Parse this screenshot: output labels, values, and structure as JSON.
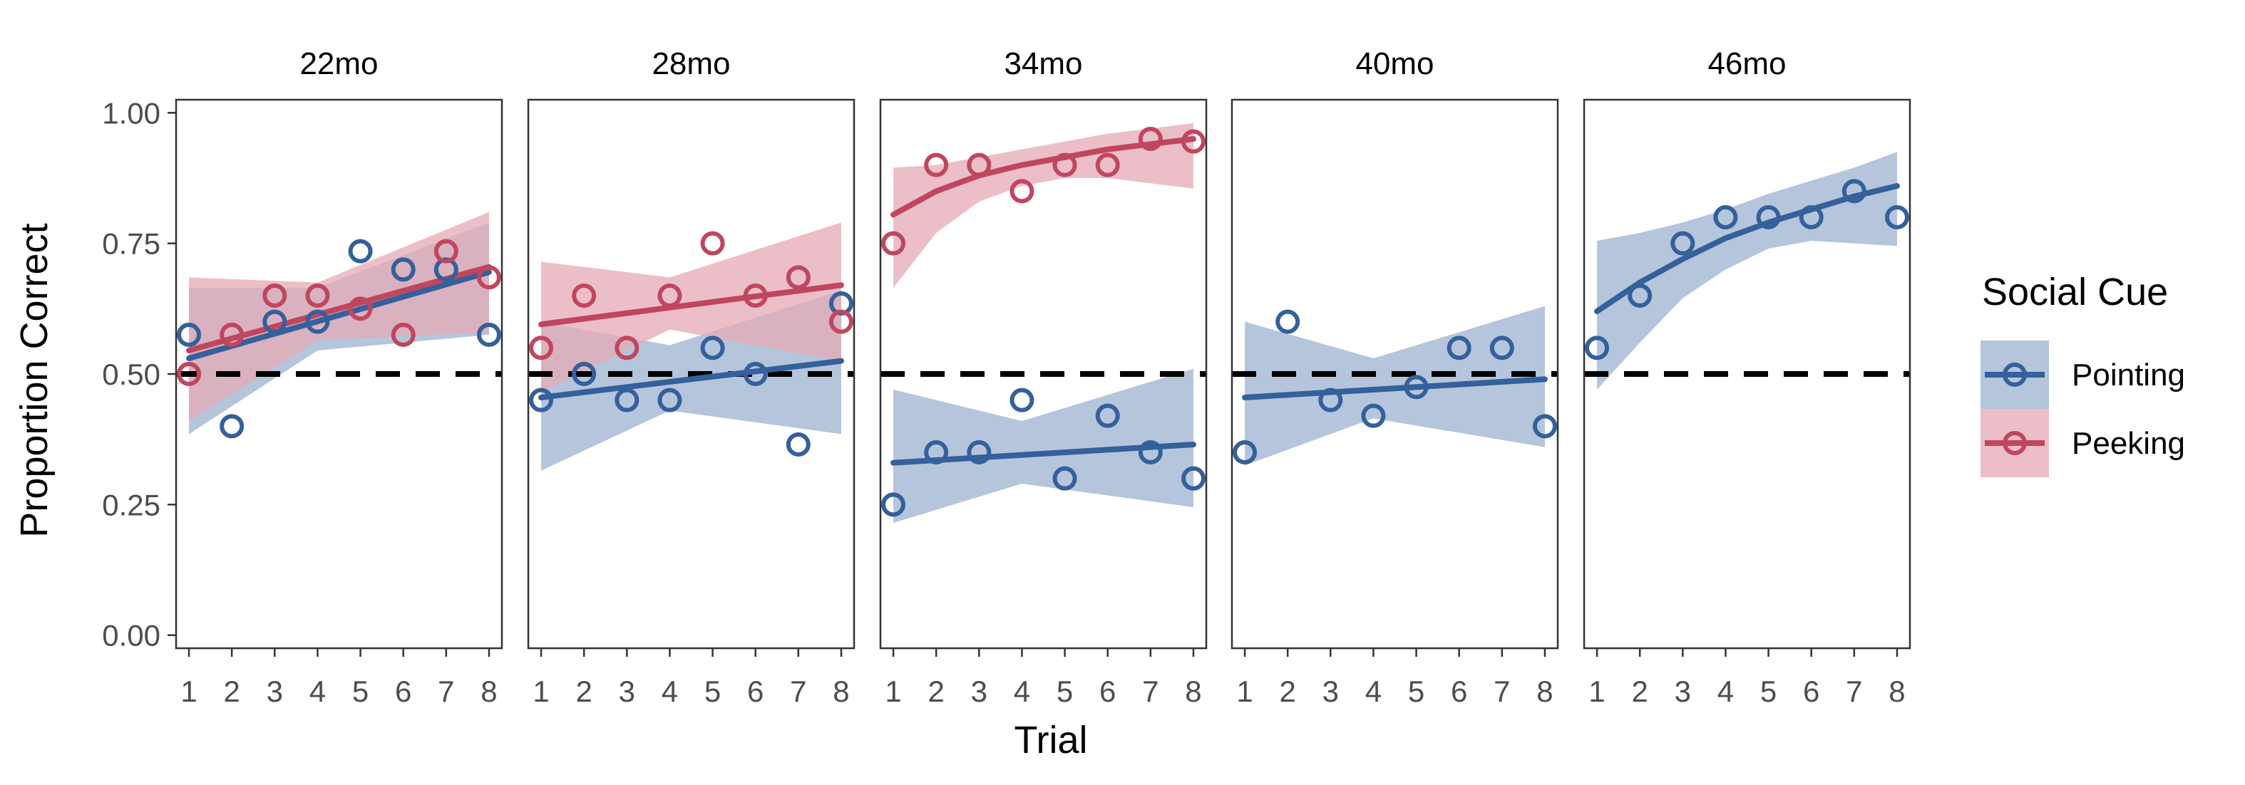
{
  "colors": {
    "pointing": "#34609b",
    "peeking": "#c0465e",
    "pointing_band": "#a8bbd6",
    "peeking_band": "#e6aab5",
    "reference_line": "#000000",
    "panel_border": "#333333",
    "text": "#4d4d4d",
    "title_text": "#000000"
  },
  "chart_data": {
    "type": "scatter",
    "layout": "facet",
    "ylabel": "Proportion Correct",
    "xlabel": "Trial",
    "x_ticks": [
      1,
      2,
      3,
      4,
      5,
      6,
      7,
      8
    ],
    "y_ticks": [
      "0.00",
      "0.25",
      "0.50",
      "0.75",
      "1.00"
    ],
    "ylim": [
      -0.025,
      1.025
    ],
    "xlim": [
      0.7,
      8.3
    ],
    "chance_level": 0.5,
    "legend": {
      "title": "Social Cue",
      "position": "right",
      "items": [
        {
          "key": "pointing",
          "label": "Pointing"
        },
        {
          "key": "peeking",
          "label": "Peeking"
        }
      ]
    },
    "facets": [
      {
        "label": "22mo",
        "series": [
          {
            "key": "pointing",
            "points": [
              [
                1,
                0.575
              ],
              [
                2,
                0.4
              ],
              [
                3,
                0.6
              ],
              [
                4,
                0.6
              ],
              [
                5,
                0.735
              ],
              [
                6,
                0.7
              ],
              [
                7,
                0.7
              ],
              [
                8,
                0.575
              ]
            ],
            "fit": [
              [
                1,
                0.53
              ],
              [
                8,
                0.695
              ]
            ],
            "ci": [
              [
                1,
                0.385,
                0.665
              ],
              [
                4,
                0.545,
                0.665
              ],
              [
                8,
                0.575,
                0.79
              ]
            ]
          },
          {
            "key": "peeking",
            "points": [
              [
                1,
                0.5
              ],
              [
                2,
                0.575
              ],
              [
                3,
                0.65
              ],
              [
                4,
                0.65
              ],
              [
                5,
                0.625
              ],
              [
                6,
                0.575
              ],
              [
                7,
                0.735
              ],
              [
                8,
                0.685
              ]
            ],
            "fit": [
              [
                1,
                0.545
              ],
              [
                8,
                0.705
              ]
            ],
            "ci": [
              [
                1,
                0.41,
                0.685
              ],
              [
                4,
                0.565,
                0.675
              ],
              [
                8,
                0.58,
                0.81
              ]
            ]
          }
        ]
      },
      {
        "label": "28mo",
        "series": [
          {
            "key": "pointing",
            "points": [
              [
                1,
                0.45
              ],
              [
                2,
                0.5
              ],
              [
                3,
                0.45
              ],
              [
                4,
                0.45
              ],
              [
                5,
                0.55
              ],
              [
                6,
                0.5
              ],
              [
                7,
                0.365
              ],
              [
                8,
                0.635
              ]
            ],
            "fit": [
              [
                1,
                0.455
              ],
              [
                8,
                0.525
              ]
            ],
            "ci": [
              [
                1,
                0.315,
                0.6
              ],
              [
                4,
                0.43,
                0.555
              ],
              [
                8,
                0.385,
                0.66
              ]
            ]
          },
          {
            "key": "peeking",
            "points": [
              [
                1,
                0.55
              ],
              [
                2,
                0.65
              ],
              [
                3,
                0.55
              ],
              [
                4,
                0.65
              ],
              [
                5,
                0.75
              ],
              [
                6,
                0.65
              ],
              [
                7,
                0.685
              ],
              [
                8,
                0.6
              ]
            ],
            "fit": [
              [
                1,
                0.595
              ],
              [
                8,
                0.67
              ]
            ],
            "ci": [
              [
                1,
                0.465,
                0.715
              ],
              [
                4,
                0.585,
                0.685
              ],
              [
                8,
                0.525,
                0.79
              ]
            ]
          }
        ]
      },
      {
        "label": "34mo",
        "series": [
          {
            "key": "pointing",
            "points": [
              [
                1,
                0.25
              ],
              [
                2,
                0.35
              ],
              [
                3,
                0.35
              ],
              [
                4,
                0.45
              ],
              [
                5,
                0.3
              ],
              [
                6,
                0.42
              ],
              [
                7,
                0.35
              ],
              [
                8,
                0.3
              ]
            ],
            "fit": [
              [
                1,
                0.33
              ],
              [
                8,
                0.365
              ]
            ],
            "ci": [
              [
                1,
                0.215,
                0.47
              ],
              [
                4,
                0.29,
                0.41
              ],
              [
                8,
                0.245,
                0.51
              ]
            ]
          },
          {
            "key": "peeking",
            "points": [
              [
                1,
                0.75
              ],
              [
                2,
                0.9
              ],
              [
                3,
                0.9
              ],
              [
                4,
                0.85
              ],
              [
                5,
                0.9
              ],
              [
                6,
                0.9
              ],
              [
                7,
                0.95
              ],
              [
                8,
                0.945
              ]
            ],
            "fit": [
              [
                1,
                0.805
              ],
              [
                2,
                0.85
              ],
              [
                3,
                0.88
              ],
              [
                4,
                0.9
              ],
              [
                5,
                0.915
              ],
              [
                6,
                0.93
              ],
              [
                7,
                0.94
              ],
              [
                8,
                0.95
              ]
            ],
            "ci": [
              [
                1,
                0.665,
                0.895
              ],
              [
                2,
                0.77,
                0.9
              ],
              [
                3,
                0.83,
                0.915
              ],
              [
                4,
                0.86,
                0.93
              ],
              [
                5,
                0.875,
                0.945
              ],
              [
                6,
                0.875,
                0.96
              ],
              [
                7,
                0.865,
                0.97
              ],
              [
                8,
                0.855,
                0.98
              ]
            ]
          }
        ]
      },
      {
        "label": "40mo",
        "series": [
          {
            "key": "pointing",
            "points": [
              [
                1,
                0.35
              ],
              [
                2,
                0.6
              ],
              [
                3,
                0.45
              ],
              [
                4,
                0.42
              ],
              [
                5,
                0.475
              ],
              [
                6,
                0.55
              ],
              [
                7,
                0.55
              ],
              [
                8,
                0.4
              ]
            ],
            "fit": [
              [
                1,
                0.455
              ],
              [
                8,
                0.49
              ]
            ],
            "ci": [
              [
                1,
                0.325,
                0.6
              ],
              [
                4,
                0.415,
                0.53
              ],
              [
                8,
                0.36,
                0.63
              ]
            ]
          }
        ]
      },
      {
        "label": "46mo",
        "series": [
          {
            "key": "pointing",
            "points": [
              [
                1,
                0.55
              ],
              [
                2,
                0.65
              ],
              [
                3,
                0.75
              ],
              [
                4,
                0.8
              ],
              [
                5,
                0.8
              ],
              [
                6,
                0.8
              ],
              [
                7,
                0.85
              ],
              [
                8,
                0.8
              ]
            ],
            "fit": [
              [
                1,
                0.62
              ],
              [
                2,
                0.675
              ],
              [
                3,
                0.72
              ],
              [
                4,
                0.76
              ],
              [
                5,
                0.79
              ],
              [
                6,
                0.815
              ],
              [
                7,
                0.84
              ],
              [
                8,
                0.86
              ]
            ],
            "ci": [
              [
                1,
                0.47,
                0.755
              ],
              [
                2,
                0.56,
                0.77
              ],
              [
                3,
                0.645,
                0.79
              ],
              [
                4,
                0.7,
                0.815
              ],
              [
                5,
                0.74,
                0.845
              ],
              [
                6,
                0.755,
                0.87
              ],
              [
                7,
                0.75,
                0.895
              ],
              [
                8,
                0.745,
                0.925
              ]
            ]
          }
        ]
      }
    ]
  }
}
